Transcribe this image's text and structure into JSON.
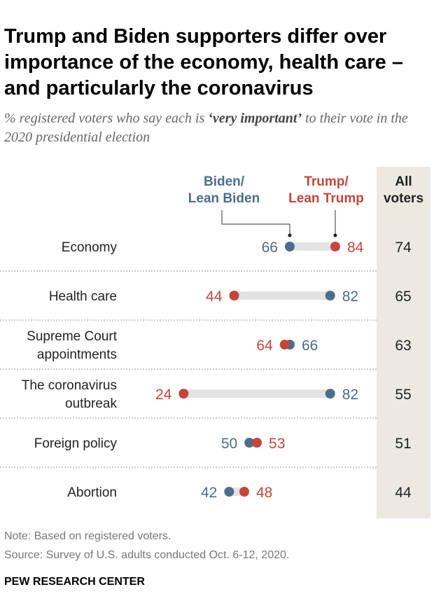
{
  "title": "Trump and Biden supporters differ over importance of the economy, health care – and particularly the coronavirus",
  "subtitle_pre": "% registered voters who say each is ",
  "subtitle_em": "‘very important’",
  "subtitle_post": " to their vote in the 2020 presidential election",
  "note": "Note: Based on registered voters.",
  "source": "Source: Survey of U.S. adults conducted Oct. 6-12, 2020.",
  "brand": "PEW RESEARCH CENTER",
  "colors": {
    "biden": "#4d6d8c",
    "trump": "#c4463a",
    "bar": "#e3e3e3",
    "allcol": "#ece9e2"
  },
  "chart_data": {
    "type": "dot",
    "legend": {
      "biden_line1": "Biden/",
      "biden_line2": "Lean Biden",
      "trump_line1": "Trump/",
      "trump_line2": "Lean Trump",
      "all_line1": "All",
      "all_line2": "voters"
    },
    "categories": [
      [
        "Economy"
      ],
      [
        "Health care"
      ],
      [
        "Supreme Court",
        "appointments"
      ],
      [
        "The coronavirus",
        "outbreak"
      ],
      [
        "Foreign policy"
      ],
      [
        "Abortion"
      ]
    ],
    "series": [
      {
        "name": "Biden/Lean Biden",
        "values": [
          66,
          82,
          66,
          82,
          50,
          42
        ]
      },
      {
        "name": "Trump/Lean Trump",
        "values": [
          84,
          44,
          64,
          24,
          53,
          48
        ]
      },
      {
        "name": "All voters",
        "values": [
          74,
          65,
          63,
          55,
          51,
          44
        ]
      }
    ]
  }
}
